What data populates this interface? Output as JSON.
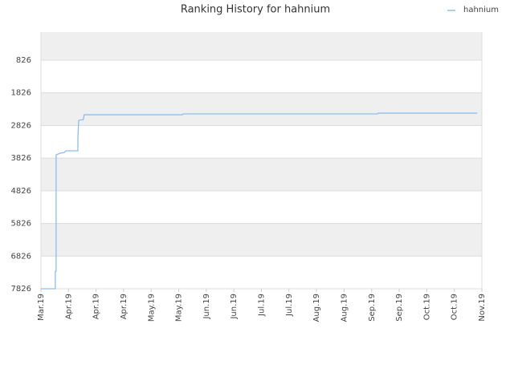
{
  "chart_data": {
    "type": "line",
    "title": "Ranking History for hahnium",
    "x": [
      0,
      0.52,
      0.52,
      0.55,
      0.55,
      0.7,
      0.85,
      0.9,
      1.34,
      1.34,
      1.37,
      1.54,
      1.57,
      5.13,
      5.16,
      12.21,
      12.24,
      15.83
    ],
    "series": [
      {
        "name": "hahnium",
        "color": "#8dbdf0",
        "values": [
          7826,
          7826,
          7288,
          7288,
          3725,
          3676,
          3651,
          3602,
          3602,
          3209,
          2669,
          2644,
          2497,
          2497,
          2472,
          2472,
          2448,
          2448
        ]
      }
    ],
    "ylim": [
      7826,
      -34
    ],
    "yticks": [
      826,
      1826,
      2826,
      3826,
      4826,
      5826,
      6826,
      7826
    ],
    "xlim": [
      0,
      16
    ],
    "xticks": [
      {
        "value": 0,
        "label": "Mar.19"
      },
      {
        "value": 1,
        "label": "Apr.19"
      },
      {
        "value": 2,
        "label": "Apr.19"
      },
      {
        "value": 3,
        "label": "Apr.19"
      },
      {
        "value": 4,
        "label": "May.19"
      },
      {
        "value": 5,
        "label": "May.19"
      },
      {
        "value": 6,
        "label": "Jun.19"
      },
      {
        "value": 7,
        "label": "Jun.19"
      },
      {
        "value": 8,
        "label": "Jul.19"
      },
      {
        "value": 9,
        "label": "Jul.19"
      },
      {
        "value": 10,
        "label": "Aug.19"
      },
      {
        "value": 11,
        "label": "Aug.19"
      },
      {
        "value": 12,
        "label": "Sep.19"
      },
      {
        "value": 13,
        "label": "Sep.19"
      },
      {
        "value": 14,
        "label": "Oct.19"
      },
      {
        "value": 15,
        "label": "Oct.19"
      },
      {
        "value": 16,
        "label": "Nov.19"
      }
    ],
    "grid": true,
    "legend": "top-right"
  }
}
